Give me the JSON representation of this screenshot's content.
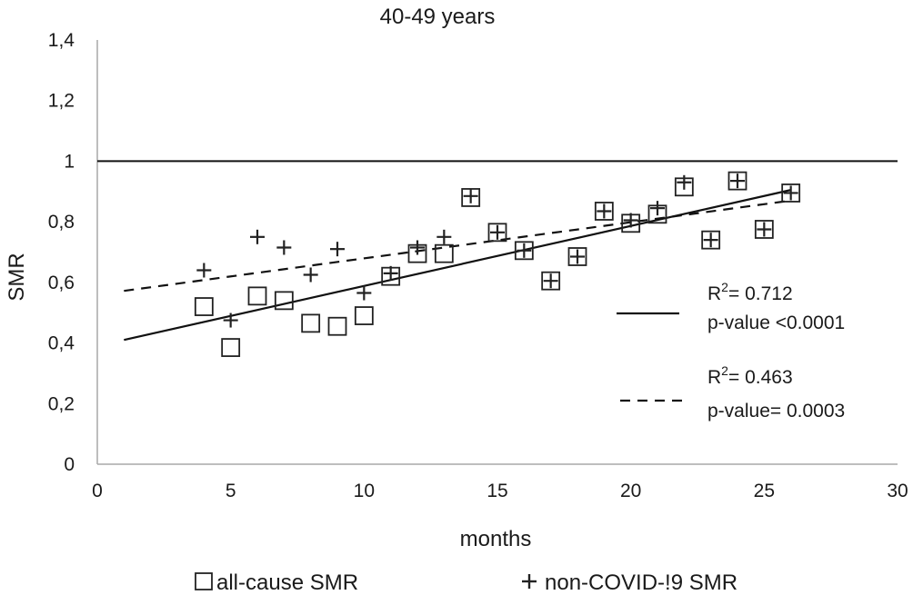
{
  "chart_data": {
    "type": "scatter",
    "title": "40-49 years",
    "xlabel": "months",
    "ylabel": "SMR",
    "xlim": [
      0,
      30
    ],
    "ylim": [
      0,
      1.4
    ],
    "x_ticks": [
      "0",
      "5",
      "10",
      "15",
      "20",
      "25",
      "30"
    ],
    "y_ticks": [
      "0",
      "0,2",
      "0,4",
      "0,6",
      "0,8",
      "1",
      "1,2",
      "1,4"
    ],
    "reference_line": 1,
    "grid": false,
    "legend_position": "bottom",
    "series": [
      {
        "name": "all-cause SMR",
        "marker": "square",
        "x": [
          4,
          5,
          6,
          7,
          8,
          9,
          10,
          11,
          12,
          13,
          14,
          15,
          16,
          17,
          18,
          19,
          20,
          21,
          22,
          23,
          24,
          25,
          26
        ],
        "y": [
          0.52,
          0.385,
          0.555,
          0.54,
          0.465,
          0.455,
          0.49,
          0.62,
          0.695,
          0.695,
          0.88,
          0.765,
          0.705,
          0.605,
          0.685,
          0.835,
          0.795,
          0.825,
          0.915,
          0.74,
          0.935,
          0.775,
          0.895
        ],
        "trend": {
          "style": "solid",
          "x": [
            1,
            26
          ],
          "y": [
            0.41,
            0.905
          ]
        }
      },
      {
        "name": "non-COVID-!9 SMR",
        "marker": "plus",
        "x": [
          4,
          5,
          6,
          7,
          8,
          9,
          10,
          11,
          12,
          13,
          14,
          15,
          16,
          17,
          18,
          19,
          20,
          21,
          22,
          23,
          24,
          25,
          26
        ],
        "y": [
          0.64,
          0.475,
          0.75,
          0.715,
          0.625,
          0.71,
          0.565,
          0.63,
          0.715,
          0.75,
          0.885,
          0.765,
          0.705,
          0.605,
          0.685,
          0.835,
          0.805,
          0.845,
          0.93,
          0.74,
          0.935,
          0.775,
          0.895
        ],
        "trend": {
          "style": "dashed",
          "x": [
            1,
            26
          ],
          "y": [
            0.572,
            0.87
          ]
        }
      }
    ],
    "annotations": [
      {
        "r2_prefix": "R",
        "r2_sup": "2",
        "r2_value": "= 0.712",
        "p_text": "p-value <0.0001",
        "line_style": "solid"
      },
      {
        "r2_prefix": "R",
        "r2_sup": "2",
        "r2_value": "= 0.463",
        "p_text": "p-value= 0.0003",
        "line_style": "dashed"
      }
    ]
  }
}
